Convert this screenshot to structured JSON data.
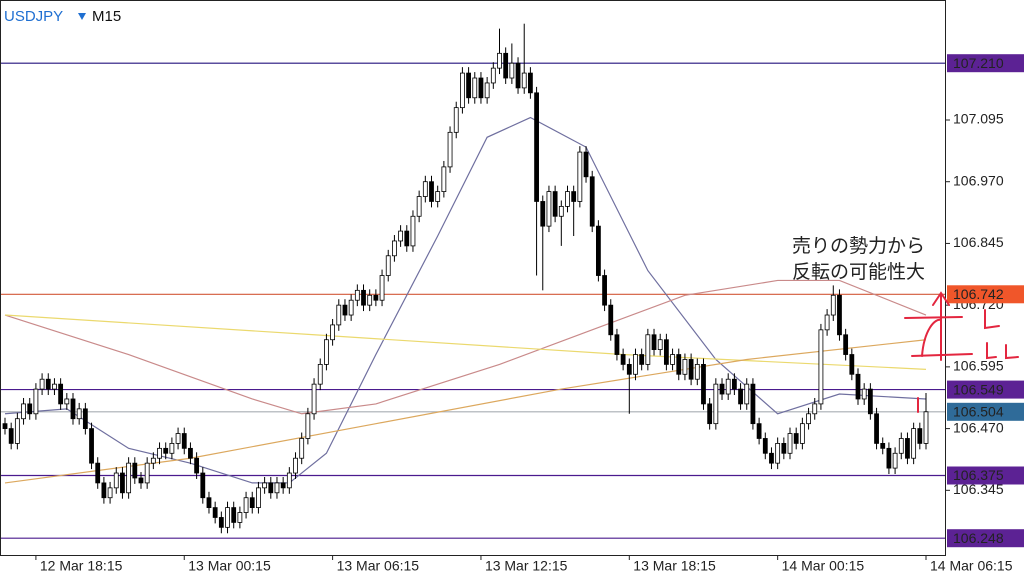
{
  "chart_data": {
    "type": "candlestick",
    "symbol": "USDJPY",
    "timeframe": "M15",
    "ylim": [
      106.214,
      107.338
    ],
    "yticks": [
      107.095,
      {
        "value": 106.97,
        "label": "106.970"
      },
      106.845,
      {
        "value": 106.72,
        "label": "106.720"
      },
      106.595,
      {
        "value": 106.47,
        "label": "106.470"
      },
      106.345
    ],
    "up_color": "#ffffff",
    "down_color": "#000000",
    "categories": [
      null,
      null,
      null,
      null,
      null,
      "12 Mar 18:15",
      null,
      null,
      null,
      null,
      null,
      null,
      null,
      null,
      null,
      null,
      null,
      null,
      null,
      null,
      null,
      null,
      null,
      null,
      null,
      null,
      null,
      null,
      null,
      "13 Mar 00:15",
      null,
      null,
      null,
      null,
      null,
      null,
      null,
      null,
      null,
      null,
      null,
      null,
      null,
      null,
      null,
      null,
      null,
      null,
      null,
      null,
      null,
      null,
      null,
      "13 Mar 06:15",
      null,
      null,
      null,
      null,
      null,
      null,
      null,
      null,
      null,
      null,
      null,
      null,
      null,
      null,
      null,
      null,
      null,
      null,
      null,
      null,
      null,
      null,
      null,
      "13 Mar 12:15",
      null,
      null,
      null,
      null,
      null,
      null,
      null,
      null,
      null,
      null,
      null,
      null,
      null,
      null,
      null,
      null,
      null,
      null,
      null,
      null,
      null,
      null,
      null,
      "13 Mar 18:15",
      null,
      null,
      null,
      null,
      null,
      null,
      null,
      null,
      null,
      null,
      null,
      null,
      null,
      null,
      null,
      null,
      null,
      null,
      null,
      null,
      null,
      null,
      null,
      "14 Mar 00:15",
      null,
      null,
      null,
      null,
      null,
      null,
      null,
      null,
      null,
      null,
      null,
      null,
      null,
      null,
      null,
      null,
      null,
      null,
      null,
      null,
      null,
      null,
      null,
      "14 Mar 06:15"
    ],
    "candles": [
      [
        106.48,
        106.492,
        106.458,
        106.47
      ],
      [
        106.47,
        106.482,
        106.428,
        106.44
      ],
      [
        106.44,
        106.502,
        106.428,
        106.49
      ],
      [
        106.49,
        106.532,
        106.478,
        106.52
      ],
      [
        106.52,
        106.532,
        106.488,
        106.5
      ],
      [
        106.5,
        106.562,
        106.488,
        106.55
      ],
      [
        106.55,
        106.582,
        106.538,
        106.57
      ],
      [
        106.57,
        106.582,
        106.538,
        106.55
      ],
      [
        106.55,
        106.572,
        106.538,
        106.56
      ],
      [
        106.56,
        106.572,
        106.508,
        106.52
      ],
      [
        106.52,
        106.542,
        106.508,
        106.53
      ],
      [
        106.53,
        106.542,
        106.478,
        106.49
      ],
      [
        106.49,
        106.522,
        106.478,
        106.51
      ],
      [
        106.51,
        106.522,
        106.458,
        106.47
      ],
      [
        106.47,
        106.482,
        106.388,
        106.4
      ],
      [
        106.4,
        106.412,
        106.348,
        106.36
      ],
      [
        106.36,
        106.372,
        106.318,
        106.33
      ],
      [
        106.33,
        106.362,
        106.318,
        106.35
      ],
      [
        106.35,
        106.392,
        106.338,
        106.38
      ],
      [
        106.38,
        106.392,
        106.328,
        106.34
      ],
      [
        106.34,
        106.412,
        106.328,
        106.4
      ],
      [
        106.4,
        106.412,
        106.358,
        106.37
      ],
      [
        106.37,
        106.382,
        106.348,
        106.36
      ],
      [
        106.36,
        106.412,
        106.348,
        106.4
      ],
      [
        106.4,
        106.422,
        106.388,
        106.41
      ],
      [
        106.41,
        106.442,
        106.398,
        106.43
      ],
      [
        106.43,
        106.442,
        106.408,
        106.42
      ],
      [
        106.42,
        106.452,
        106.408,
        106.44
      ],
      [
        106.44,
        106.472,
        106.428,
        106.46
      ],
      [
        106.46,
        106.472,
        106.418,
        106.43
      ],
      [
        106.43,
        106.442,
        106.398,
        106.41
      ],
      [
        106.41,
        106.422,
        106.368,
        106.38
      ],
      [
        106.38,
        106.392,
        106.318,
        106.33
      ],
      [
        106.33,
        106.342,
        106.298,
        106.31
      ],
      [
        106.31,
        106.322,
        106.278,
        106.29
      ],
      [
        106.29,
        106.302,
        106.258,
        106.27
      ],
      [
        106.27,
        106.322,
        106.258,
        106.31
      ],
      [
        106.31,
        106.322,
        106.268,
        106.28
      ],
      [
        106.28,
        106.312,
        106.268,
        106.3
      ],
      [
        106.3,
        106.342,
        106.288,
        106.33
      ],
      [
        106.33,
        106.342,
        106.298,
        106.31
      ],
      [
        106.31,
        106.362,
        106.298,
        106.35
      ],
      [
        106.35,
        106.372,
        106.338,
        106.36
      ],
      [
        106.36,
        106.372,
        106.328,
        106.34
      ],
      [
        106.34,
        106.372,
        106.328,
        106.36
      ],
      [
        106.36,
        106.372,
        106.338,
        106.35
      ],
      [
        106.35,
        106.392,
        106.338,
        106.38
      ],
      [
        106.38,
        106.422,
        106.368,
        106.41
      ],
      [
        106.41,
        106.462,
        106.398,
        106.45
      ],
      [
        106.45,
        106.512,
        106.438,
        106.5
      ],
      [
        106.5,
        106.572,
        106.488,
        106.56
      ],
      [
        106.56,
        106.612,
        106.548,
        106.6
      ],
      [
        106.6,
        106.662,
        106.588,
        106.65
      ],
      [
        106.65,
        106.692,
        106.638,
        106.68
      ],
      [
        106.68,
        106.732,
        106.668,
        106.72
      ],
      [
        106.72,
        106.732,
        106.688,
        106.7
      ],
      [
        106.7,
        106.742,
        106.688,
        106.73
      ],
      [
        106.73,
        106.762,
        106.718,
        106.75
      ],
      [
        106.75,
        106.762,
        106.708,
        106.72
      ],
      [
        106.72,
        106.752,
        106.708,
        106.74
      ],
      [
        106.74,
        106.752,
        106.718,
        106.73
      ],
      [
        106.73,
        106.792,
        106.718,
        106.78
      ],
      [
        106.78,
        106.832,
        106.768,
        106.82
      ],
      [
        106.82,
        106.862,
        106.808,
        106.85
      ],
      [
        106.85,
        106.882,
        106.838,
        106.87
      ],
      [
        106.87,
        106.882,
        106.828,
        106.84
      ],
      [
        106.84,
        106.912,
        106.828,
        106.9
      ],
      [
        106.9,
        106.952,
        106.888,
        106.94
      ],
      [
        106.94,
        106.982,
        106.928,
        106.97
      ],
      [
        106.97,
        106.982,
        106.918,
        106.93
      ],
      [
        106.93,
        106.962,
        106.918,
        106.95
      ],
      [
        106.95,
        107.012,
        106.938,
        107.0
      ],
      [
        107.0,
        107.082,
        106.988,
        107.07
      ],
      [
        107.07,
        107.132,
        107.058,
        107.12
      ],
      [
        107.12,
        107.202,
        107.108,
        107.19
      ],
      [
        107.19,
        107.202,
        107.128,
        107.14
      ],
      [
        107.14,
        107.192,
        107.128,
        107.18
      ],
      [
        107.18,
        107.192,
        107.128,
        107.14
      ],
      [
        107.14,
        107.182,
        107.128,
        107.17
      ],
      [
        107.17,
        107.212,
        107.158,
        107.2
      ],
      [
        107.2,
        107.28,
        107.188,
        107.23
      ],
      [
        107.23,
        107.242,
        107.168,
        107.18
      ],
      [
        107.18,
        107.25,
        107.168,
        107.21
      ],
      [
        107.21,
        107.222,
        107.148,
        107.16
      ],
      [
        107.16,
        107.29,
        107.148,
        107.19
      ],
      [
        107.19,
        107.202,
        107.138,
        107.15
      ],
      [
        107.15,
        107.162,
        106.78,
        106.93
      ],
      [
        106.93,
        106.942,
        106.75,
        106.88
      ],
      [
        106.88,
        106.962,
        106.868,
        106.95
      ],
      [
        106.95,
        106.962,
        106.888,
        106.9
      ],
      [
        106.9,
        106.932,
        106.84,
        106.92
      ],
      [
        106.92,
        106.962,
        106.908,
        106.95
      ],
      [
        106.95,
        106.962,
        106.86,
        106.93
      ],
      [
        106.93,
        107.042,
        106.918,
        107.03
      ],
      [
        107.03,
        107.042,
        106.968,
        106.98
      ],
      [
        106.98,
        106.992,
        106.868,
        106.88
      ],
      [
        106.88,
        106.892,
        106.768,
        106.78
      ],
      [
        106.78,
        106.792,
        106.708,
        106.72
      ],
      [
        106.72,
        106.732,
        106.648,
        106.66
      ],
      [
        106.66,
        106.672,
        106.608,
        106.62
      ],
      [
        106.62,
        106.632,
        106.588,
        106.6
      ],
      [
        106.6,
        106.612,
        106.5,
        106.58
      ],
      [
        106.58,
        106.632,
        106.568,
        106.62
      ],
      [
        106.62,
        106.632,
        106.588,
        106.6
      ],
      [
        106.6,
        106.672,
        106.588,
        106.66
      ],
      [
        106.66,
        106.672,
        106.618,
        106.63
      ],
      [
        106.63,
        106.662,
        106.618,
        106.65
      ],
      [
        106.65,
        106.662,
        106.588,
        106.6
      ],
      [
        106.6,
        106.632,
        106.588,
        106.62
      ],
      [
        106.62,
        106.632,
        106.568,
        106.58
      ],
      [
        106.58,
        106.622,
        106.568,
        106.61
      ],
      [
        106.61,
        106.622,
        106.558,
        106.57
      ],
      [
        106.57,
        106.612,
        106.558,
        106.6
      ],
      [
        106.6,
        106.612,
        106.508,
        106.52
      ],
      [
        106.52,
        106.532,
        106.468,
        106.48
      ],
      [
        106.48,
        106.572,
        106.468,
        106.56
      ],
      [
        106.56,
        106.572,
        106.528,
        106.54
      ],
      [
        106.54,
        106.582,
        106.528,
        106.57
      ],
      [
        106.57,
        106.582,
        106.538,
        106.55
      ],
      [
        106.55,
        106.562,
        106.508,
        106.52
      ],
      [
        106.52,
        106.572,
        106.508,
        106.56
      ],
      [
        106.56,
        106.572,
        106.468,
        106.48
      ],
      [
        106.48,
        106.492,
        106.438,
        106.45
      ],
      [
        106.45,
        106.462,
        106.408,
        106.42
      ],
      [
        106.42,
        106.432,
        106.388,
        106.4
      ],
      [
        106.4,
        106.452,
        106.388,
        106.44
      ],
      [
        106.44,
        106.452,
        106.408,
        106.42
      ],
      [
        106.42,
        106.472,
        106.408,
        106.46
      ],
      [
        106.46,
        106.472,
        106.428,
        106.44
      ],
      [
        106.44,
        106.492,
        106.428,
        106.48
      ],
      [
        106.48,
        106.512,
        106.468,
        106.5
      ],
      [
        106.5,
        106.532,
        106.488,
        106.52
      ],
      [
        106.52,
        106.682,
        106.508,
        106.67
      ],
      [
        106.67,
        106.712,
        106.658,
        106.7
      ],
      [
        106.7,
        106.76,
        106.688,
        106.74
      ],
      [
        106.74,
        106.752,
        106.648,
        106.66
      ],
      [
        106.66,
        106.672,
        106.608,
        106.62
      ],
      [
        106.62,
        106.632,
        106.568,
        106.58
      ],
      [
        106.58,
        106.592,
        106.518,
        106.53
      ],
      [
        106.53,
        106.562,
        106.518,
        106.55
      ],
      [
        106.55,
        106.562,
        106.488,
        106.5
      ],
      [
        106.5,
        106.512,
        106.428,
        106.44
      ],
      [
        106.44,
        106.452,
        106.418,
        106.43
      ],
      [
        106.43,
        106.442,
        106.378,
        106.39
      ],
      [
        106.39,
        106.432,
        106.378,
        106.42
      ],
      [
        106.42,
        106.462,
        106.408,
        106.45
      ],
      [
        106.45,
        106.462,
        106.398,
        106.41
      ],
      [
        106.41,
        106.482,
        106.398,
        106.47
      ],
      [
        106.47,
        106.482,
        106.428,
        106.44
      ],
      [
        106.44,
        106.542,
        106.428,
        106.504
      ]
    ],
    "overlays": [
      {
        "color": "#6f6f9f",
        "x": [
          0,
          10,
          20,
          30,
          40,
          46,
          52,
          60,
          70,
          78,
          85,
          94,
          104,
          115,
          125,
          135,
          149
        ],
        "values": [
          106.5,
          106.51,
          106.43,
          106.4,
          106.36,
          106.36,
          106.42,
          106.62,
          106.86,
          107.06,
          107.1,
          107.04,
          106.79,
          106.61,
          106.5,
          106.54,
          106.53
        ]
      },
      {
        "color": "#c98a8a",
        "x": [
          0,
          20,
          40,
          48,
          60,
          80,
          95,
          110,
          125,
          135,
          149
        ],
        "values": [
          106.7,
          106.62,
          106.53,
          106.5,
          106.52,
          106.6,
          106.67,
          106.74,
          106.77,
          106.77,
          106.7
        ]
      },
      {
        "color": "#ebd96e",
        "x": [
          0,
          50,
          100,
          149
        ],
        "values": [
          106.7,
          106.66,
          106.62,
          106.59
        ]
      },
      {
        "color": "#dca85e",
        "x": [
          0,
          30,
          60,
          90,
          120,
          149
        ],
        "values": [
          106.36,
          106.41,
          106.48,
          106.55,
          106.61,
          106.65
        ]
      }
    ],
    "levels": [
      {
        "value": 107.21,
        "label": "107.210",
        "color": "#24137e",
        "box_color": "#5c2294"
      },
      {
        "value": 106.742,
        "label": "106.742",
        "color": "#d2593a",
        "box_color": "#f0562a"
      },
      {
        "value": 106.549,
        "label": "106.549",
        "color": "#4a1a8e",
        "box_color": "#5c2294"
      },
      {
        "value": 106.504,
        "label": "106.504",
        "color": "#a8aeb4",
        "box_color": "#2f6b99"
      },
      {
        "value": 106.375,
        "label": "106.375",
        "color": "#4a1a8e",
        "box_color": "#5c2294"
      },
      {
        "value": 106.248,
        "label": "106.248",
        "color": "#4a1a8e",
        "box_color": "#5c2294"
      }
    ],
    "annotations": [
      "売りの勢力から",
      "反転の可能性大"
    ],
    "annotation_color": "#e3263f"
  }
}
